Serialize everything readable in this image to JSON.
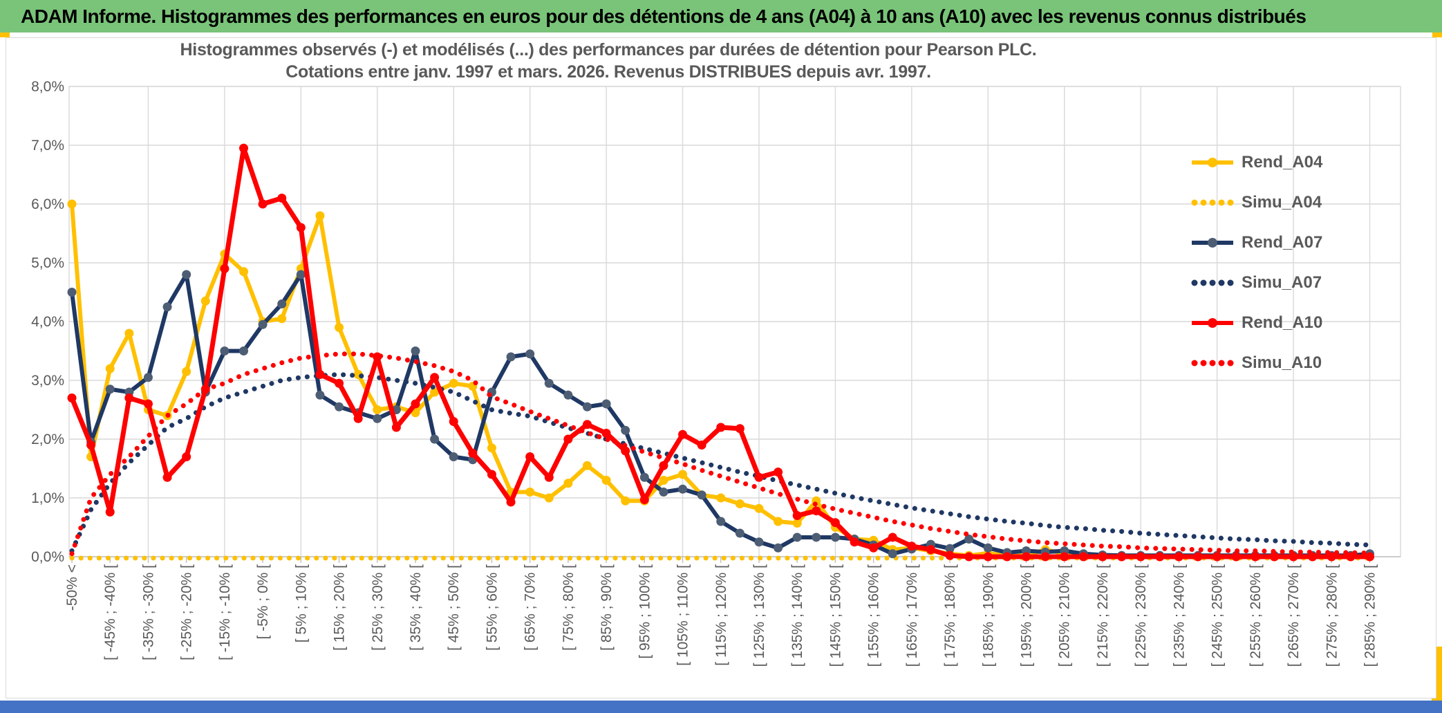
{
  "header": {
    "title": "ADAM Informe. Histogrammes des performances en euros pour des détentions de 4 ans (A04) à 10 ans (A10) avec les revenus connus distribués"
  },
  "chart": {
    "title_line1": "Histogrammes observés (-) et modélisés (...) des performances par durées de détention pour Pearson PLC.",
    "title_line2": "Cotations entre janv. 1997 et mars. 2026. Revenus DISTRIBUES depuis avr. 1997."
  },
  "colors": {
    "header_green": "#79C479",
    "accent_gold": "#FFC000",
    "bottom_blue": "#4472C4",
    "gold": "#FFC000",
    "navy": "#1F3864",
    "navy_marker": "#4D5D74",
    "red": "#FF0000",
    "grid": "#D9D9D9",
    "axis": "#BFBFBF",
    "text_grey": "#595959"
  },
  "chart_data": {
    "type": "line",
    "title": "Histogrammes observés (-) et modélisés (...) des performances par durées de détention pour Pearson PLC.",
    "subtitle": "Cotations entre janv. 1997 et mars. 2026. Revenus DISTRIBUES depuis avr. 1997.",
    "ylabel": "",
    "xlabel": "",
    "ylim": [
      0,
      8
    ],
    "ytick_step": 1,
    "ytick_labels": [
      "0,0%",
      "1,0%",
      "2,0%",
      "3,0%",
      "4,0%",
      "5,0%",
      "6,0%",
      "7,0%",
      "8,0%"
    ],
    "grid": true,
    "legend_position": "right-upper",
    "bins_total": 69,
    "bin_width_percent": 5,
    "label_every_n_bins": 2,
    "x_axis_labels": [
      "-50% <",
      "[ -45% ; -40% [",
      "[ -35% ; -30% [",
      "[ -25% ; -20% [",
      "[ -15% ; -10% [",
      "[ -5% ; 0% [",
      "[ 5% ; 10% [",
      "[ 15% ; 20% [",
      "[ 25% ; 30% [",
      "[ 35% ; 40% [",
      "[ 45% ; 50% [",
      "[ 55% ; 60% [",
      "[ 65% ; 70% [",
      "[ 75% ; 80% [",
      "[ 85% ; 90% [",
      "[ 95% ; 100% [",
      "[ 105% ; 110% [",
      "[ 115% ; 120% [",
      "[ 125% ; 130% [",
      "[ 135% ; 140% [",
      "[ 145% ; 150% [",
      "[ 155% ; 160% [",
      "[ 165% ; 170% [",
      "[ 175% ; 180% [",
      "[ 185% ; 190% [",
      "[ 195% ; 200% [",
      "[ 205% ; 210% [",
      "[ 215% ; 220% [",
      "[ 225% ; 230% [",
      "[ 235% ; 240% [",
      "[ 245% ; 250% [",
      "[ 255% ; 260% [",
      "[ 265% ; 270% [",
      "[ 275% ; 280% [",
      "[ 285% ; 290% ["
    ],
    "series": [
      {
        "name": "Rend_A04",
        "style": "solid",
        "color": "#FFC000",
        "marker": "#FFC000",
        "values": [
          6.0,
          1.7,
          3.2,
          3.8,
          2.5,
          2.4,
          3.15,
          4.35,
          5.15,
          4.85,
          4.0,
          4.05,
          4.9,
          5.8,
          3.9,
          3.1,
          2.5,
          2.55,
          2.45,
          2.8,
          2.95,
          2.9,
          1.85,
          1.1,
          1.1,
          1.0,
          1.25,
          1.55,
          1.3,
          0.95,
          0.95,
          1.3,
          1.4,
          1.05,
          1.0,
          0.9,
          0.82,
          0.6,
          0.57,
          0.95,
          0.5,
          0.3,
          0.28,
          0.12,
          0.15,
          0.1,
          0.05,
          0.02,
          0.06,
          0.02,
          0.02,
          0.12,
          0.05,
          0.02,
          0,
          0,
          0,
          0,
          0,
          0,
          0,
          0,
          0,
          0,
          0,
          0,
          0,
          0,
          0
        ]
      },
      {
        "name": "Simu_A04",
        "style": "dotted",
        "color": "#FFC000",
        "marker": null,
        "values": [
          0,
          0,
          0,
          0,
          0,
          0,
          0,
          0,
          0,
          0,
          0,
          0,
          0,
          0,
          0,
          0,
          0,
          0,
          0,
          0,
          0,
          0,
          0,
          0,
          0,
          0,
          0,
          0,
          0,
          0,
          0,
          0,
          0,
          0,
          0,
          0,
          0,
          0,
          0,
          0,
          0,
          0,
          0,
          0,
          0,
          0,
          0,
          0,
          0,
          0,
          0,
          0,
          0,
          0,
          0,
          0,
          0,
          0,
          0,
          0,
          0,
          0,
          0,
          0,
          0,
          0,
          0,
          0,
          0
        ]
      },
      {
        "name": "Rend_A07",
        "style": "solid",
        "color": "#1F3864",
        "marker": "#4D5D74",
        "values": [
          4.5,
          1.95,
          2.85,
          2.8,
          3.05,
          4.25,
          4.8,
          2.8,
          3.5,
          3.5,
          3.95,
          4.3,
          4.8,
          2.75,
          2.55,
          2.45,
          2.35,
          2.5,
          3.5,
          2.0,
          1.7,
          1.65,
          2.8,
          3.4,
          3.45,
          2.95,
          2.75,
          2.55,
          2.6,
          2.15,
          1.35,
          1.1,
          1.15,
          1.05,
          0.6,
          0.4,
          0.25,
          0.15,
          0.33,
          0.33,
          0.33,
          0.3,
          0.2,
          0.05,
          0.13,
          0.21,
          0.14,
          0.3,
          0.15,
          0.07,
          0.1,
          0.08,
          0.1,
          0.05,
          0.03,
          0.02,
          0.02,
          0.02,
          0.02,
          0.02,
          0.02,
          0.02,
          0.02,
          0.02,
          0.02,
          0.02,
          0.02,
          0.02,
          0.05
        ]
      },
      {
        "name": "Simu_A07",
        "style": "dotted",
        "color": "#1F3864",
        "marker": null,
        "values": [
          0.1,
          0.8,
          1.25,
          1.6,
          1.9,
          2.2,
          2.35,
          2.55,
          2.7,
          2.8,
          2.9,
          3.0,
          3.05,
          3.08,
          3.1,
          3.08,
          3.05,
          3.0,
          2.95,
          2.88,
          2.8,
          2.65,
          2.5,
          2.44,
          2.39,
          2.29,
          2.19,
          2.1,
          2.0,
          1.92,
          1.84,
          1.76,
          1.68,
          1.6,
          1.52,
          1.44,
          1.37,
          1.29,
          1.22,
          1.15,
          1.08,
          1.01,
          0.95,
          0.89,
          0.83,
          0.78,
          0.73,
          0.68,
          0.64,
          0.6,
          0.57,
          0.53,
          0.5,
          0.48,
          0.45,
          0.43,
          0.4,
          0.38,
          0.36,
          0.34,
          0.32,
          0.3,
          0.29,
          0.27,
          0.26,
          0.24,
          0.23,
          0.21,
          0.2
        ]
      },
      {
        "name": "Rend_A10",
        "style": "solid",
        "color": "#FF0000",
        "marker": "#FF0000",
        "values": [
          2.7,
          1.9,
          0.76,
          2.7,
          2.6,
          1.35,
          1.7,
          2.85,
          4.9,
          6.95,
          6.0,
          6.1,
          5.6,
          3.1,
          2.95,
          2.35,
          3.4,
          2.2,
          2.6,
          3.05,
          2.3,
          1.76,
          1.4,
          0.93,
          1.7,
          1.35,
          2.0,
          2.25,
          2.1,
          1.8,
          0.97,
          1.55,
          2.08,
          1.9,
          2.2,
          2.18,
          1.35,
          1.44,
          0.7,
          0.78,
          0.58,
          0.25,
          0.15,
          0.33,
          0.18,
          0.12,
          0.02,
          0,
          0,
          0,
          0,
          0,
          0,
          0,
          0,
          0,
          0,
          0,
          0,
          0,
          0,
          0,
          0,
          0,
          0,
          0,
          0,
          0,
          0
        ]
      },
      {
        "name": "Simu_A10",
        "style": "dotted",
        "color": "#FF0000",
        "marker": null,
        "values": [
          0.05,
          1.0,
          1.4,
          1.7,
          2.05,
          2.4,
          2.6,
          2.85,
          2.95,
          3.1,
          3.2,
          3.3,
          3.38,
          3.42,
          3.45,
          3.45,
          3.42,
          3.38,
          3.32,
          3.25,
          3.15,
          3.0,
          2.72,
          2.6,
          2.47,
          2.35,
          2.23,
          2.11,
          2.0,
          1.89,
          1.78,
          1.68,
          1.58,
          1.47,
          1.37,
          1.27,
          1.17,
          1.07,
          0.98,
          0.89,
          0.81,
          0.74,
          0.67,
          0.6,
          0.54,
          0.48,
          0.43,
          0.38,
          0.34,
          0.3,
          0.27,
          0.24,
          0.22,
          0.2,
          0.18,
          0.17,
          0.15,
          0.14,
          0.13,
          0.12,
          0.11,
          0.1,
          0.1,
          0.09,
          0.08,
          0.08,
          0.07,
          0.07,
          0.06
        ]
      }
    ]
  }
}
